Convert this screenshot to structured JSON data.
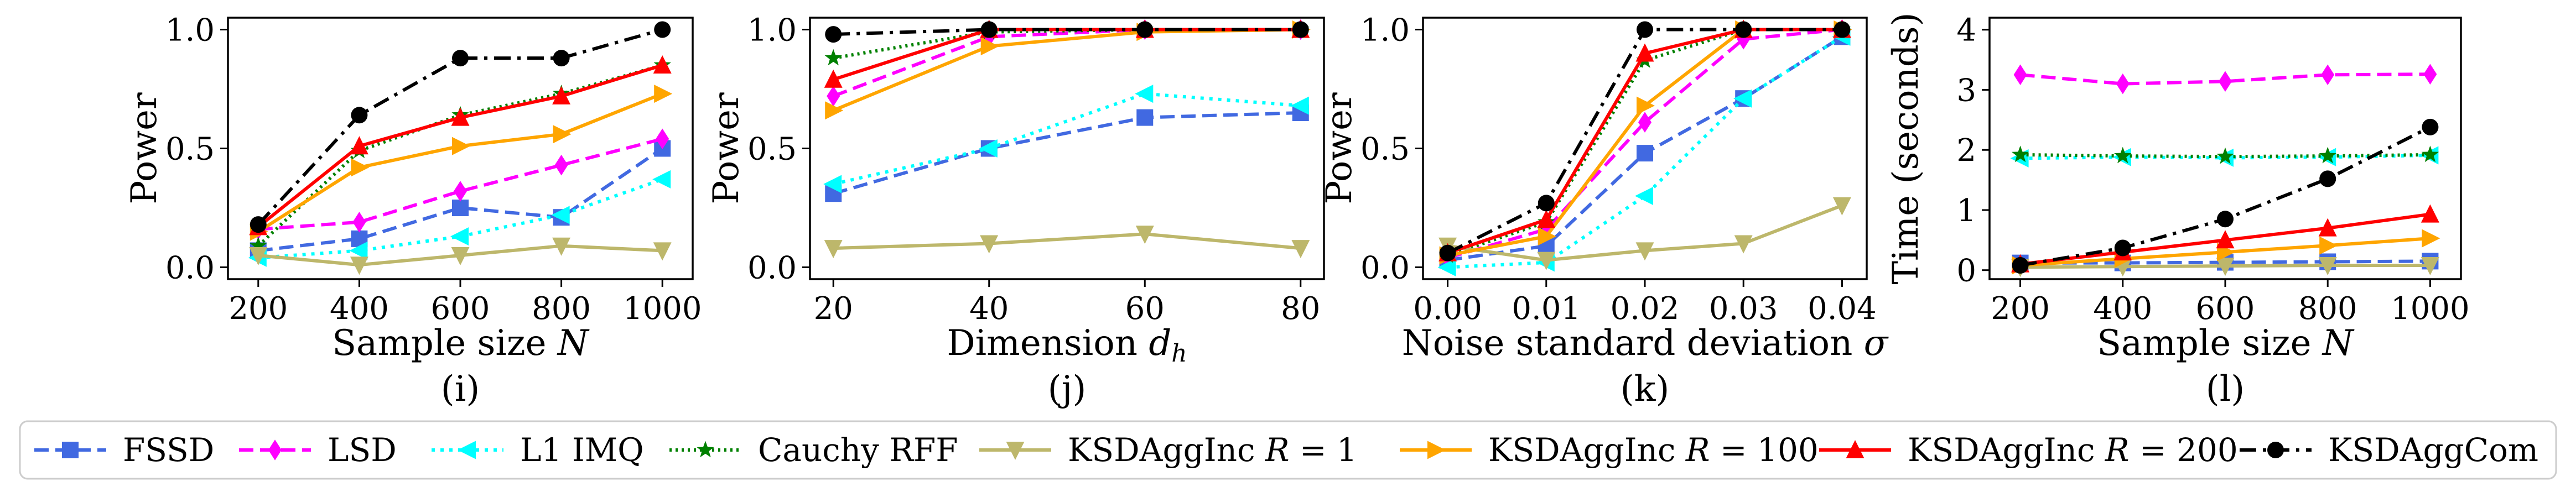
{
  "colors": {
    "FSSD": "#4169e1",
    "LSD": "#ff00ff",
    "L1 IMQ": "#00ffff",
    "Cauchy RFF": "#008000",
    "KSDAggInc R = 1": "#bdb76b",
    "KSDAggInc R = 100": "#ffa500",
    "KSDAggInc R = 200": "#ff0000",
    "KSDAggCom": "#000000"
  },
  "legend": {
    "placement": "bottom",
    "entries": [
      {
        "name": "FSSD",
        "label": "FSSD",
        "marker": "square",
        "dash": "dashed"
      },
      {
        "name": "LSD",
        "label": "LSD",
        "marker": "diamond",
        "dash": "dashed"
      },
      {
        "name": "L1 IMQ",
        "label": "L1 IMQ",
        "marker": "triangle-left",
        "dash": "dotted"
      },
      {
        "name": "Cauchy RFF",
        "label": "Cauchy RFF",
        "marker": "star",
        "dash": "dotted-dense"
      },
      {
        "name": "KSDAggInc R = 1",
        "label": "KSDAggInc R = 1",
        "marker": "triangle-down",
        "dash": "solid"
      },
      {
        "name": "KSDAggInc R = 100",
        "label": "KSDAggInc R = 100",
        "marker": "triangle-right",
        "dash": "solid"
      },
      {
        "name": "KSDAggInc R = 200",
        "label": "KSDAggInc R = 200",
        "marker": "triangle-up",
        "dash": "solid"
      },
      {
        "name": "KSDAggCom",
        "label": "KSDAggCom",
        "marker": "circle",
        "dash": "dashdot"
      }
    ]
  },
  "chart_data": [
    {
      "type": "line",
      "subplot_label": "(i)",
      "xlabel": "Sample size N",
      "ylabel": "Power",
      "x": [
        200,
        400,
        600,
        800,
        1000
      ],
      "xticks": [
        "200",
        "400",
        "600",
        "800",
        "1000"
      ],
      "xlim": [
        140,
        1060
      ],
      "yticks": [
        "0.0",
        "0.5",
        "1.0"
      ],
      "ylim": [
        -0.05,
        1.05
      ],
      "grid": false,
      "series": [
        {
          "name": "FSSD",
          "values": [
            0.07,
            0.12,
            0.25,
            0.21,
            0.5
          ]
        },
        {
          "name": "LSD",
          "values": [
            0.16,
            0.19,
            0.32,
            0.43,
            0.54
          ]
        },
        {
          "name": "L1 IMQ",
          "values": [
            0.04,
            0.07,
            0.13,
            0.22,
            0.37
          ]
        },
        {
          "name": "Cauchy RFF",
          "values": [
            0.09,
            0.49,
            0.64,
            0.73,
            0.85
          ]
        },
        {
          "name": "KSDAggInc R = 1",
          "values": [
            0.05,
            0.01,
            0.05,
            0.09,
            0.07
          ]
        },
        {
          "name": "KSDAggInc R = 100",
          "values": [
            0.15,
            0.42,
            0.51,
            0.56,
            0.73
          ]
        },
        {
          "name": "KSDAggInc R = 200",
          "values": [
            0.17,
            0.51,
            0.63,
            0.72,
            0.85
          ]
        },
        {
          "name": "KSDAggCom",
          "values": [
            0.18,
            0.64,
            0.88,
            0.88,
            1.0
          ]
        }
      ]
    },
    {
      "type": "line",
      "subplot_label": "(j)",
      "xlabel": "Dimension d_h",
      "ylabel": "Power",
      "x": [
        20,
        40,
        60,
        80
      ],
      "xticks": [
        "20",
        "40",
        "60",
        "80"
      ],
      "xlim": [
        17,
        83
      ],
      "yticks": [
        "0.0",
        "0.5",
        "1.0"
      ],
      "ylim": [
        -0.05,
        1.05
      ],
      "grid": false,
      "series": [
        {
          "name": "FSSD",
          "values": [
            0.31,
            0.5,
            0.63,
            0.65
          ]
        },
        {
          "name": "LSD",
          "values": [
            0.72,
            0.97,
            1.0,
            1.0
          ]
        },
        {
          "name": "L1 IMQ",
          "values": [
            0.35,
            0.5,
            0.73,
            0.68
          ]
        },
        {
          "name": "Cauchy RFF",
          "values": [
            0.88,
            0.99,
            1.0,
            1.0
          ]
        },
        {
          "name": "KSDAggInc R = 1",
          "values": [
            0.08,
            0.1,
            0.14,
            0.08
          ]
        },
        {
          "name": "KSDAggInc R = 100",
          "values": [
            0.66,
            0.93,
            0.99,
            1.0
          ]
        },
        {
          "name": "KSDAggInc R = 200",
          "values": [
            0.79,
            1.0,
            1.0,
            1.0
          ]
        },
        {
          "name": "KSDAggCom",
          "values": [
            0.98,
            1.0,
            1.0,
            1.0
          ]
        }
      ]
    },
    {
      "type": "line",
      "subplot_label": "(k)",
      "xlabel": "Noise standard deviation σ",
      "ylabel": "Power",
      "x": [
        0.0,
        0.01,
        0.02,
        0.03,
        0.04
      ],
      "xticks": [
        "0.00",
        "0.01",
        "0.02",
        "0.03",
        "0.04"
      ],
      "xlim": [
        -0.0025,
        0.0425
      ],
      "yticks": [
        "0.0",
        "0.5",
        "1.0"
      ],
      "ylim": [
        -0.05,
        1.05
      ],
      "grid": false,
      "series": [
        {
          "name": "FSSD",
          "values": [
            0.03,
            0.09,
            0.48,
            0.71,
            0.97
          ]
        },
        {
          "name": "LSD",
          "values": [
            0.04,
            0.16,
            0.61,
            0.96,
            1.0
          ]
        },
        {
          "name": "L1 IMQ",
          "values": [
            0.0,
            0.02,
            0.3,
            0.71,
            0.97
          ]
        },
        {
          "name": "Cauchy RFF",
          "values": [
            0.05,
            0.19,
            0.87,
            1.0,
            1.0
          ]
        },
        {
          "name": "KSDAggInc R = 1",
          "values": [
            0.09,
            0.03,
            0.07,
            0.1,
            0.26
          ]
        },
        {
          "name": "KSDAggInc R = 100",
          "values": [
            0.05,
            0.13,
            0.68,
            1.0,
            1.0
          ]
        },
        {
          "name": "KSDAggInc R = 200",
          "values": [
            0.06,
            0.2,
            0.9,
            1.0,
            1.0
          ]
        },
        {
          "name": "KSDAggCom",
          "values": [
            0.06,
            0.27,
            1.0,
            1.0,
            1.0
          ]
        }
      ]
    },
    {
      "type": "line",
      "subplot_label": "(l)",
      "xlabel": "Sample size N",
      "ylabel": "Time (seconds)",
      "x": [
        200,
        400,
        600,
        800,
        1000
      ],
      "xticks": [
        "200",
        "400",
        "600",
        "800",
        "1000"
      ],
      "xlim": [
        140,
        1060
      ],
      "yticks": [
        "0",
        "1",
        "2",
        "3",
        "4"
      ],
      "ylim": [
        -0.15,
        4.2
      ],
      "grid": false,
      "series": [
        {
          "name": "FSSD",
          "values": [
            0.12,
            0.12,
            0.13,
            0.14,
            0.15
          ]
        },
        {
          "name": "LSD",
          "values": [
            3.25,
            3.1,
            3.14,
            3.25,
            3.26
          ]
        },
        {
          "name": "L1 IMQ",
          "values": [
            1.86,
            1.88,
            1.87,
            1.88,
            1.91
          ]
        },
        {
          "name": "Cauchy RFF",
          "values": [
            1.92,
            1.9,
            1.89,
            1.9,
            1.92
          ]
        },
        {
          "name": "KSDAggInc R = 1",
          "values": [
            0.05,
            0.06,
            0.07,
            0.08,
            0.08
          ]
        },
        {
          "name": "KSDAggInc R = 100",
          "values": [
            0.08,
            0.19,
            0.3,
            0.41,
            0.53
          ]
        },
        {
          "name": "KSDAggInc R = 200",
          "values": [
            0.1,
            0.3,
            0.5,
            0.7,
            0.93
          ]
        },
        {
          "name": "KSDAggCom",
          "values": [
            0.08,
            0.37,
            0.85,
            1.52,
            2.38
          ]
        }
      ]
    }
  ]
}
